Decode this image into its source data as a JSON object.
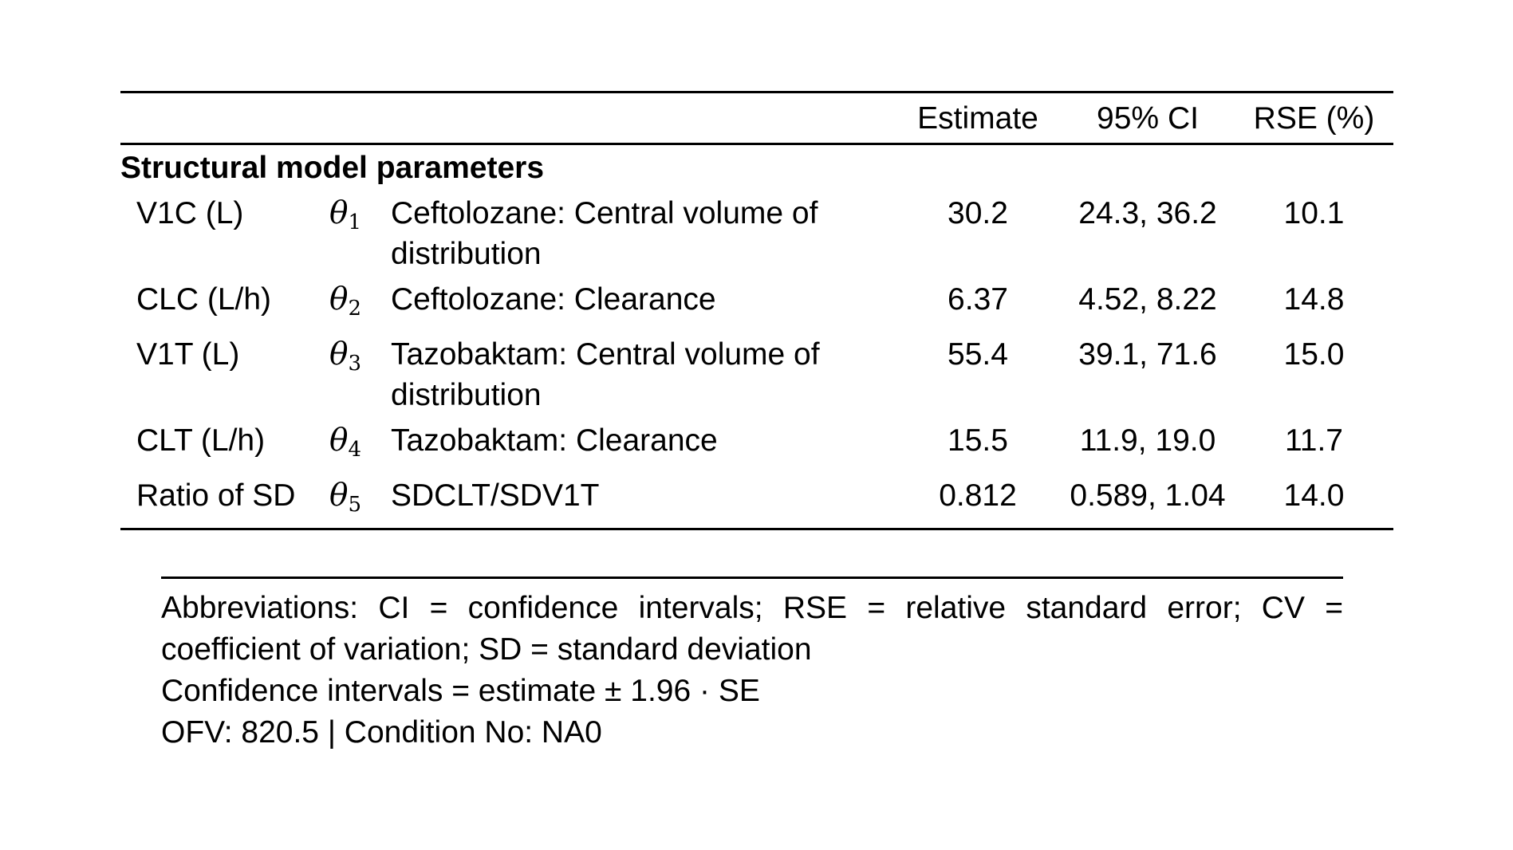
{
  "colors": {
    "text": "#000000",
    "background": "#ffffff",
    "rule": "#000000"
  },
  "table": {
    "headers": {
      "estimate": "Estimate",
      "ci": "95% CI",
      "rse": "RSE (%)"
    },
    "section": "Structural model parameters",
    "rows": [
      {
        "param": "V1C (L)",
        "theta_symbol": "θ",
        "theta_sub": "1",
        "desc": "Ceftolozane: Central volume of\ndistribution",
        "estimate": "30.2",
        "ci": "24.3, 36.2",
        "rse": "10.1"
      },
      {
        "param": "CLC (L/h)",
        "theta_symbol": "θ",
        "theta_sub": "2",
        "desc": "Ceftolozane: Clearance",
        "estimate": "6.37",
        "ci": "4.52, 8.22",
        "rse": "14.8"
      },
      {
        "param": "V1T (L)",
        "theta_symbol": "θ",
        "theta_sub": "3",
        "desc": "Tazobaktam: Central volume of\ndistribution",
        "estimate": "55.4",
        "ci": "39.1, 71.6",
        "rse": "15.0"
      },
      {
        "param": "CLT (L/h)",
        "theta_symbol": "θ",
        "theta_sub": "4",
        "desc": "Tazobaktam: Clearance",
        "estimate": "15.5",
        "ci": "11.9, 19.0",
        "rse": "11.7"
      },
      {
        "param": "Ratio of SD",
        "theta_symbol": "θ",
        "theta_sub": "5",
        "desc": "SDCLT/SDV1T",
        "estimate": "0.812",
        "ci": "0.589, 1.04",
        "rse": "14.0"
      }
    ]
  },
  "footer": {
    "lines": [
      {
        "text": "Abbreviations: CI = confidence intervals; RSE = relative standard error; CV ="
      },
      {
        "text": "coefficient of variation; SD = standard deviation"
      },
      {
        "text": "Confidence intervals = estimate ± 1.96 · SE"
      },
      {
        "text": "OFV: 820.5 | Condition No: NA0"
      }
    ]
  }
}
